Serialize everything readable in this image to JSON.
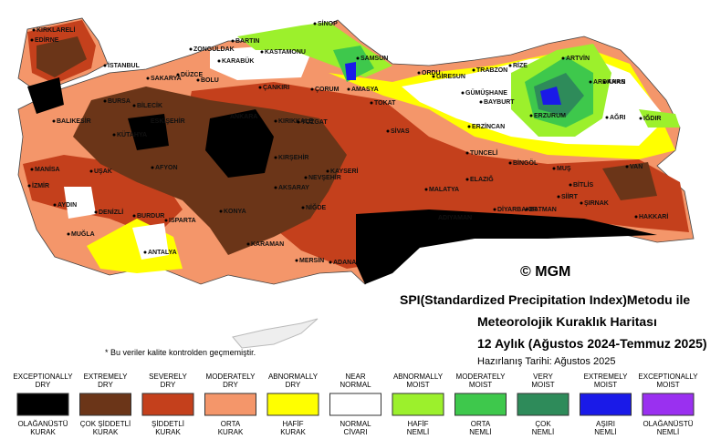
{
  "title": {
    "method": "SPI(Standardized Precipitation Index)Metodu ile",
    "map": "Meteorolojik Kuraklık Haritası",
    "period": "12 Aylık (Ağustos 2024-Temmuz 2025)",
    "prepared": "Hazırlanış Tarihi: Ağustos 2025"
  },
  "copyright": "© MGM",
  "note": "* Bu veriler kalite kontrolden geçmemiştir.",
  "legend": [
    {
      "en": [
        "EXCEPTIONALLY",
        "DRY"
      ],
      "tr": [
        "OLAĞANÜSTÜ",
        "KURAK"
      ],
      "color": "#000000"
    },
    {
      "en": [
        "EXTREMELY",
        "DRY"
      ],
      "tr": [
        "ÇOK ŞİDDETLİ",
        "KURAK"
      ],
      "color": "#6b3518"
    },
    {
      "en": [
        "SEVERELY",
        "DRY"
      ],
      "tr": [
        "ŞİDDETLİ",
        "KURAK"
      ],
      "color": "#c4401c"
    },
    {
      "en": [
        "MODERATELY",
        "DRY"
      ],
      "tr": [
        "ORTA",
        "KURAK"
      ],
      "color": "#f4966a"
    },
    {
      "en": [
        "ABNORMALLY",
        "DRY"
      ],
      "tr": [
        "HAFİF",
        "KURAK"
      ],
      "color": "#ffff00"
    },
    {
      "en": [
        "NEAR",
        "NORMAL"
      ],
      "tr": [
        "NORMAL",
        "CİVARI"
      ],
      "color": "#ffffff"
    },
    {
      "en": [
        "ABNORMALLY",
        "MOIST"
      ],
      "tr": [
        "HAFİF",
        "NEMLİ"
      ],
      "color": "#9cf02c"
    },
    {
      "en": [
        "MODERATELY",
        "MOIST"
      ],
      "tr": [
        "ORTA",
        "NEMLİ"
      ],
      "color": "#3ec84c"
    },
    {
      "en": [
        "VERY",
        "MOIST"
      ],
      "tr": [
        "ÇOK",
        "NEMLİ"
      ],
      "color": "#2e8b5a"
    },
    {
      "en": [
        "EXTREMELY",
        "MOIST"
      ],
      "tr": [
        "AŞIRI",
        "NEMLİ"
      ],
      "color": "#1a1ae8"
    },
    {
      "en": [
        "EXCEPTIONALLY",
        "MOIST"
      ],
      "tr": [
        "OLAĞANÜSTÜ",
        "NEMLİ"
      ],
      "color": "#9a30f0"
    }
  ],
  "cities": [
    "KIRKLARELİ",
    "EDİRNE",
    "İSTANBUL",
    "SAKARYA",
    "DÜZCE",
    "BOLU",
    "ZONGULDAK",
    "BARTIN",
    "KARABÜK",
    "KASTAMONU",
    "SİNOP",
    "SAMSUN",
    "AMASYA",
    "ORDU",
    "GİRESUN",
    "TRABZON",
    "RİZE",
    "ARTVİN",
    "ARDAHAN",
    "KARS",
    "IĞDIR",
    "AĞRI",
    "ERZURUM",
    "BAYBURT",
    "GÜMÜŞHANE",
    "ERZİNCAN",
    "TOKAT",
    "ÇORUM",
    "ÇANKIRI",
    "ANKARA",
    "KIRIKKALE",
    "YOZGAT",
    "SİVAS",
    "KIRŞEHİR",
    "NEVŞEHİR",
    "KAYSERİ",
    "AKSARAY",
    "NİĞDE",
    "KONYA",
    "KARAMAN",
    "MERSİN",
    "ADANA",
    "MALATYA",
    "ELAZIĞ",
    "TUNCELİ",
    "BİNGÖL",
    "MUŞ",
    "BİTLİS",
    "VAN",
    "HAKKARİ",
    "ŞIRNAK",
    "SİİRT",
    "BATMAN",
    "DİYARBAKIR",
    "ADIYAMAN",
    "BURSA",
    "BİLECİK",
    "ESKİŞEHİR",
    "KÜTAHYA",
    "BALIKESİR",
    "MANİSA",
    "İZMİR",
    "UŞAK",
    "AFYON",
    "DENİZLİ",
    "AYDIN",
    "MUĞLA",
    "BURDUR",
    "ISPARTA",
    "ANTALYA"
  ]
}
